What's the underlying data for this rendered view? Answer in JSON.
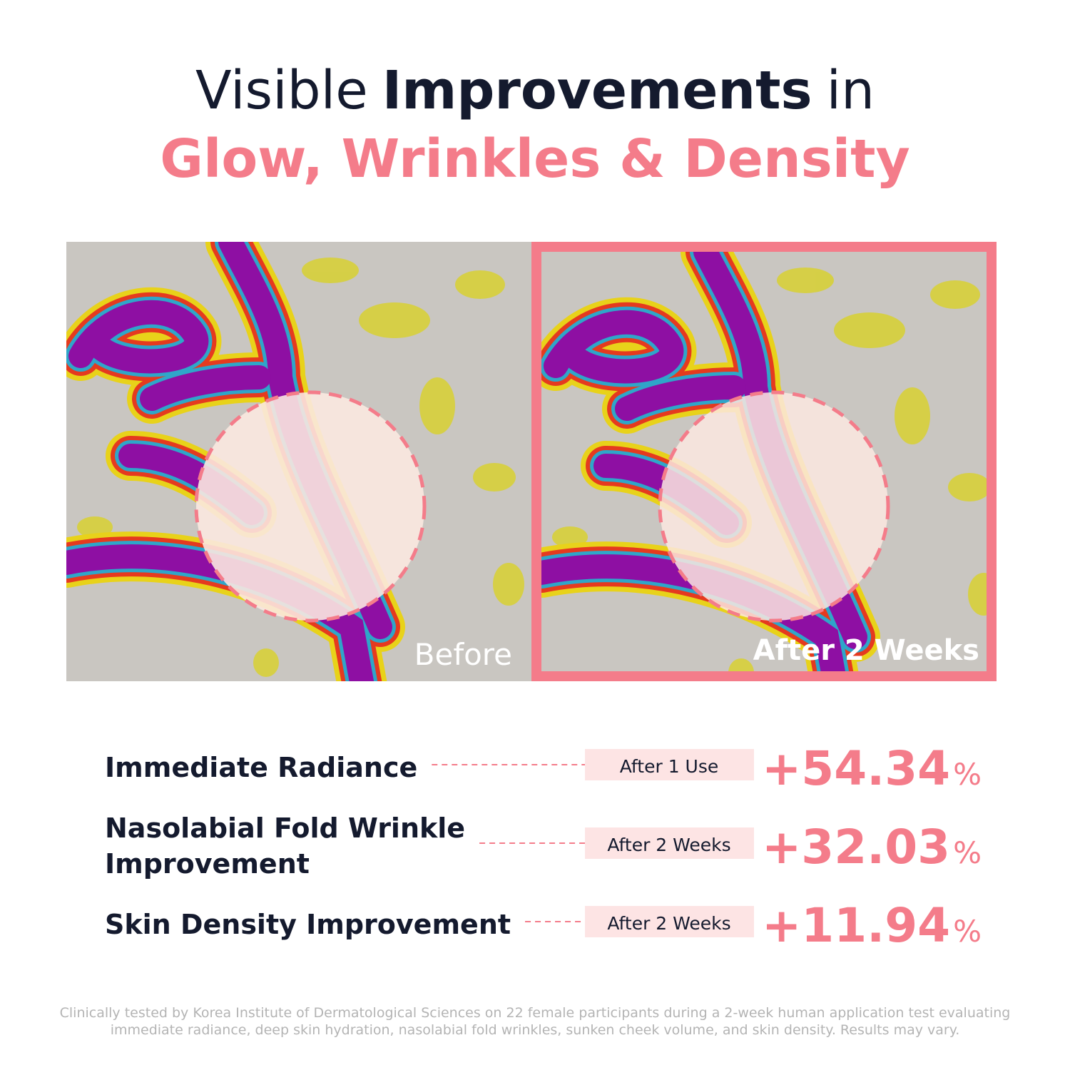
{
  "header": {
    "line1": [
      "Visible",
      "Improvements",
      "in"
    ],
    "line2": "Glow, Wrinkles & Density"
  },
  "images": [
    {
      "label": "Before"
    },
    {
      "label": "After 2 Weeks"
    }
  ],
  "stats": [
    {
      "label": [
        "Immediate Radiance"
      ],
      "badge": "After 1 Use",
      "value": "+54.34",
      "unit": "%"
    },
    {
      "label": [
        "Nasolabial Fold Wrinkle",
        "Improvement"
      ],
      "badge": "After 2 Weeks",
      "value": "+32.03",
      "unit": "%"
    },
    {
      "label": [
        "Skin Density Improvement"
      ],
      "badge": "After 2 Weeks",
      "value": "+11.94",
      "unit": "%"
    }
  ],
  "footnote": [
    "Clinically tested by Korea Institute of Dermatological Sciences on 22 female participants during a 2-week human application test evaluating",
    "immediate radiance, deep skin hydration, nasolabial fold wrinkles, sunken cheek volume, and skin density. Results may vary."
  ]
}
